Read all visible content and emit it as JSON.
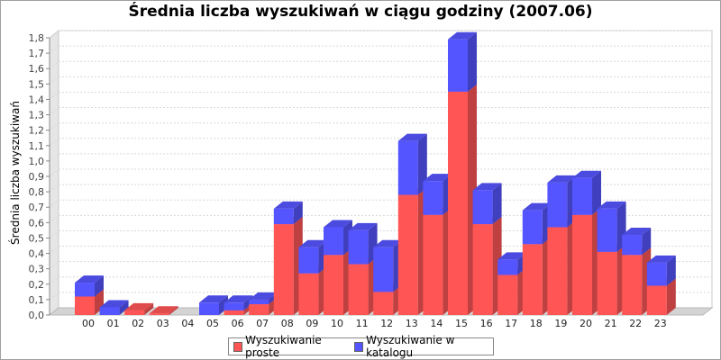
{
  "chart_data": {
    "type": "bar",
    "stacked": true,
    "three_d": true,
    "title": "Średnia liczba wyszukiwań w ciągu godziny (2007.06)",
    "xlabel": "",
    "ylabel": "Średnia liczba wyszukiwań",
    "ylim": [
      0,
      1.8
    ],
    "yticks": [
      "0,0",
      "0,1",
      "0,2",
      "0,3",
      "0,4",
      "0,5",
      "0,6",
      "0,7",
      "0,8",
      "0,9",
      "1,0",
      "1,1",
      "1,2",
      "1,3",
      "1,4",
      "1,5",
      "1,6",
      "1,7",
      "1,8"
    ],
    "categories": [
      "00",
      "01",
      "02",
      "03",
      "04",
      "05",
      "06",
      "07",
      "08",
      "09",
      "10",
      "11",
      "12",
      "13",
      "14",
      "15",
      "16",
      "17",
      "18",
      "19",
      "20",
      "21",
      "22",
      "23"
    ],
    "series": [
      {
        "name": "Wyszukiwanie proste",
        "color": "#ff5555",
        "values": [
          0.12,
          0.0,
          0.03,
          0.01,
          0.0,
          0.0,
          0.03,
          0.07,
          0.59,
          0.27,
          0.39,
          0.33,
          0.15,
          0.78,
          0.65,
          1.45,
          0.59,
          0.26,
          0.46,
          0.57,
          0.65,
          0.41,
          0.39,
          0.19
        ]
      },
      {
        "name": "Wyszukiwanie w katalogu",
        "color": "#5555ff",
        "values": [
          0.09,
          0.05,
          0.0,
          0.0,
          0.0,
          0.08,
          0.05,
          0.03,
          0.1,
          0.17,
          0.18,
          0.22,
          0.29,
          0.35,
          0.22,
          0.34,
          0.22,
          0.1,
          0.22,
          0.29,
          0.24,
          0.28,
          0.13,
          0.15
        ]
      }
    ],
    "grid": true,
    "legend_position": "bottom"
  }
}
